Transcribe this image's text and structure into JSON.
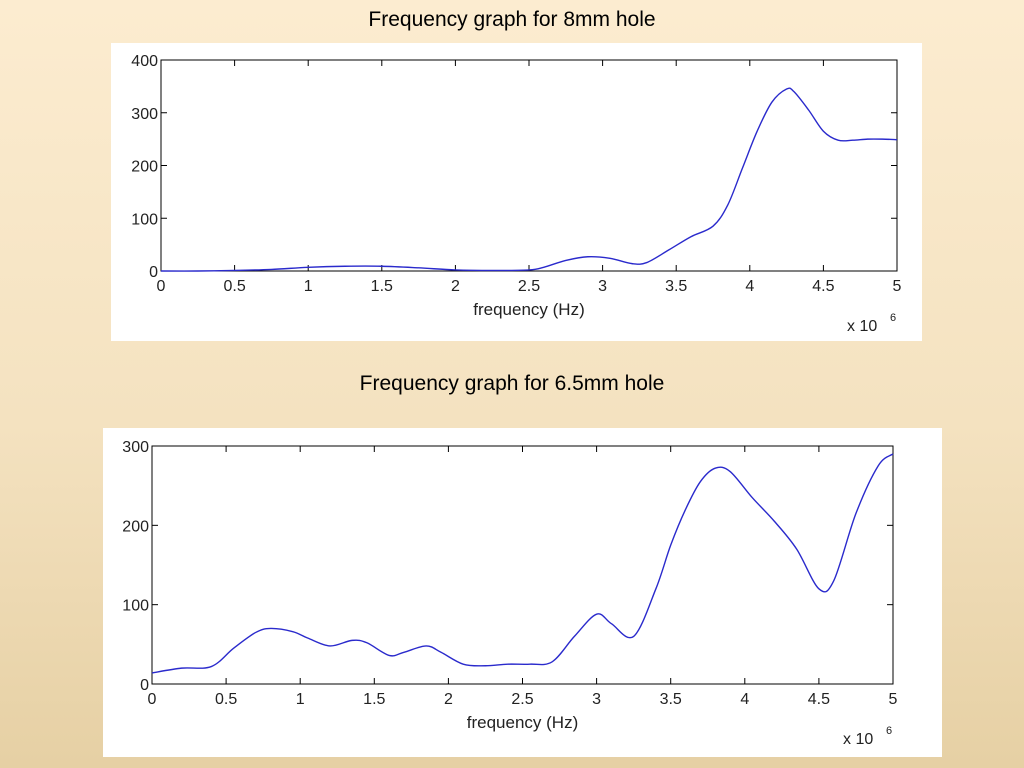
{
  "captions": {
    "top": "Frequency graph for 8mm hole",
    "bottom": "Frequency graph for 6.5mm hole"
  },
  "chart_data": [
    {
      "type": "line",
      "title": "Frequency graph for 8mm hole",
      "xlabel": "frequency (Hz)",
      "ylabel": "",
      "x_multiplier_label": "x 10",
      "x_multiplier_exponent": "6",
      "xlim": [
        0,
        5
      ],
      "ylim": [
        0,
        400
      ],
      "xticks": [
        "0",
        "0.5",
        "1",
        "1.5",
        "2",
        "2.5",
        "3",
        "3.5",
        "4",
        "4.5",
        "5"
      ],
      "yticks": [
        "0",
        "100",
        "200",
        "300",
        "400"
      ],
      "grid": false,
      "line_color": "#2a2acc",
      "x": [
        0,
        0.25,
        0.5,
        0.75,
        1.0,
        1.25,
        1.5,
        1.75,
        2.0,
        2.25,
        2.5,
        2.6,
        2.75,
        2.9,
        3.05,
        3.2,
        3.3,
        3.45,
        3.6,
        3.75,
        3.85,
        3.95,
        4.05,
        4.15,
        4.25,
        4.3,
        4.4,
        4.5,
        4.6,
        4.7,
        4.8,
        4.9,
        5.0
      ],
      "y": [
        0,
        0,
        1,
        3,
        7,
        9,
        9,
        6,
        2,
        1,
        2,
        7,
        20,
        27,
        24,
        14,
        16,
        40,
        65,
        85,
        125,
        195,
        265,
        320,
        345,
        340,
        305,
        265,
        248,
        248,
        250,
        250,
        249
      ]
    },
    {
      "type": "line",
      "title": "Frequency graph for 6.5mm hole",
      "xlabel": "frequency (Hz)",
      "ylabel": "",
      "x_multiplier_label": "x 10",
      "x_multiplier_exponent": "6",
      "xlim": [
        0,
        5
      ],
      "ylim": [
        0,
        300
      ],
      "xticks": [
        "0",
        "0.5",
        "1",
        "1.5",
        "2",
        "2.5",
        "3",
        "3.5",
        "4",
        "4.5",
        "5"
      ],
      "yticks": [
        "0",
        "100",
        "200",
        "300"
      ],
      "grid": false,
      "line_color": "#2a2acc",
      "x": [
        0,
        0.2,
        0.4,
        0.55,
        0.7,
        0.8,
        0.95,
        1.05,
        1.2,
        1.35,
        1.45,
        1.6,
        1.7,
        1.85,
        1.95,
        2.1,
        2.25,
        2.4,
        2.55,
        2.7,
        2.85,
        3.0,
        3.1,
        3.25,
        3.4,
        3.5,
        3.6,
        3.7,
        3.8,
        3.9,
        4.05,
        4.2,
        4.35,
        4.5,
        4.6,
        4.75,
        4.9,
        5.0
      ],
      "y": [
        14,
        20,
        22,
        45,
        65,
        70,
        66,
        58,
        48,
        55,
        52,
        36,
        40,
        48,
        40,
        25,
        23,
        25,
        25,
        28,
        60,
        88,
        76,
        60,
        120,
        175,
        220,
        255,
        272,
        268,
        235,
        205,
        170,
        120,
        130,
        215,
        275,
        290
      ]
    }
  ]
}
